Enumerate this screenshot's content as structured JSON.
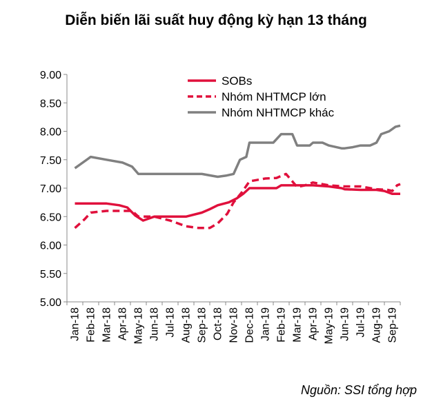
{
  "title": "Diễn biến lãi suất huy động kỳ hạn 13 tháng",
  "source": "Nguồn: SSI tổng hợp",
  "chart_data": {
    "type": "line",
    "title": "Diễn biến lãi suất huy động kỳ hạn 13 tháng",
    "xlabel": "",
    "ylabel": "",
    "ylim": [
      5.0,
      9.0
    ],
    "y_ticks": [
      "5.00",
      "5.50",
      "6.00",
      "6.50",
      "7.00",
      "7.50",
      "8.00",
      "8.50",
      "9.00"
    ],
    "categories": [
      "Jan-18",
      "Feb-18",
      "Mar-18",
      "Apr-18",
      "May-18",
      "Jun-18",
      "Jul-18",
      "Aug-18",
      "Sep-18",
      "Oct-18",
      "Nov-18",
      "Dec-18",
      "Jan-19",
      "Feb-19",
      "Mar-19",
      "Apr-19",
      "May-19",
      "Jun-19",
      "Jul-19",
      "Aug-19",
      "Sep-19"
    ],
    "grid": false,
    "legend_position": "top-right",
    "series": [
      {
        "name": "SOBs",
        "color": "#e0103c",
        "dash": "solid",
        "x": [
          0,
          1,
          2,
          2.8,
          3.3,
          3.8,
          4.3,
          5,
          6,
          7,
          8,
          8.5,
          9,
          9.7,
          10.2,
          10.6,
          11,
          12,
          12.7,
          13,
          14,
          14.6,
          15,
          16,
          16.8,
          17,
          18,
          19,
          19.5,
          20,
          20.5
        ],
        "values": [
          6.73,
          6.73,
          6.73,
          6.7,
          6.66,
          6.52,
          6.43,
          6.5,
          6.5,
          6.5,
          6.57,
          6.63,
          6.7,
          6.75,
          6.82,
          6.9,
          7.0,
          7.0,
          7.0,
          7.05,
          7.05,
          7.05,
          7.05,
          7.03,
          7.0,
          6.98,
          6.97,
          6.97,
          6.95,
          6.9,
          6.9
        ]
      },
      {
        "name": "Nhóm NHTMCP lớn",
        "color": "#e0103c",
        "dash": "dashed",
        "x": [
          0,
          0.6,
          1,
          2,
          3,
          3.6,
          4,
          5,
          6,
          7,
          7.8,
          8.5,
          9,
          9.6,
          10,
          10.5,
          11,
          12,
          12.7,
          13.3,
          13.7,
          14,
          14.5,
          15,
          16,
          17,
          18,
          19,
          19.7,
          20,
          20.3,
          20.5
        ],
        "values": [
          6.3,
          6.45,
          6.57,
          6.6,
          6.6,
          6.6,
          6.5,
          6.5,
          6.43,
          6.33,
          6.3,
          6.3,
          6.38,
          6.55,
          6.75,
          6.92,
          7.12,
          7.17,
          7.18,
          7.25,
          7.12,
          7.02,
          7.05,
          7.1,
          7.05,
          7.03,
          7.03,
          6.98,
          6.97,
          6.95,
          7.05,
          7.07
        ]
      },
      {
        "name": "Nhóm NHTMCP khác",
        "color": "#808080",
        "dash": "solid",
        "x": [
          0,
          1,
          2,
          3,
          3.6,
          4,
          5,
          6,
          7,
          8,
          8.6,
          9,
          9.5,
          10,
          10.4,
          10.8,
          11,
          12,
          12.5,
          13,
          13.7,
          14,
          14.8,
          15,
          15.6,
          16,
          16.8,
          17,
          17.5,
          18,
          18.6,
          19,
          19.3,
          19.8,
          20.2,
          20.5
        ],
        "values": [
          7.35,
          7.55,
          7.5,
          7.45,
          7.38,
          7.25,
          7.25,
          7.25,
          7.25,
          7.25,
          7.22,
          7.2,
          7.22,
          7.25,
          7.5,
          7.55,
          7.8,
          7.8,
          7.8,
          7.95,
          7.95,
          7.75,
          7.75,
          7.8,
          7.8,
          7.75,
          7.7,
          7.7,
          7.72,
          7.75,
          7.75,
          7.8,
          7.95,
          8.0,
          8.08,
          8.1
        ]
      }
    ]
  }
}
